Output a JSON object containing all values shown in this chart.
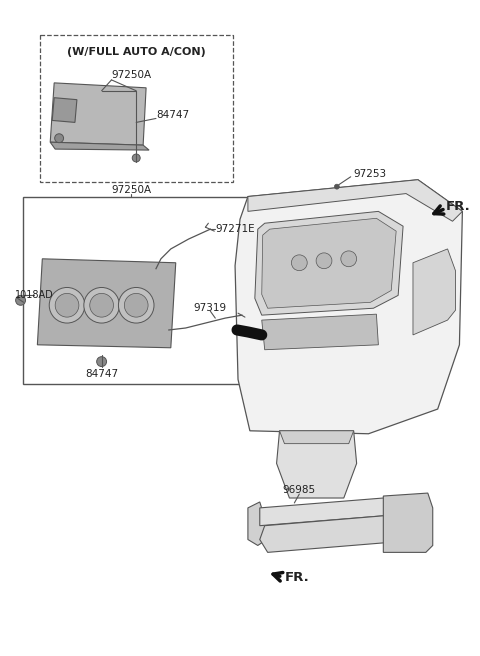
{
  "bg_color": "#ffffff",
  "line_color": "#555555",
  "text_color": "#222222",
  "parts": {
    "top_box_label": "(W/FULL AUTO A/CON)",
    "top_97250A": "97250A",
    "top_84747": "84747",
    "main_97250A": "97250A",
    "main_97271E": "97271E",
    "main_97319": "97319",
    "main_84747": "84747",
    "bolt_1018AD": "1018AD",
    "dash_97253": "97253",
    "bottom_96985": "96985",
    "fr1": "FR.",
    "fr2": "FR."
  }
}
